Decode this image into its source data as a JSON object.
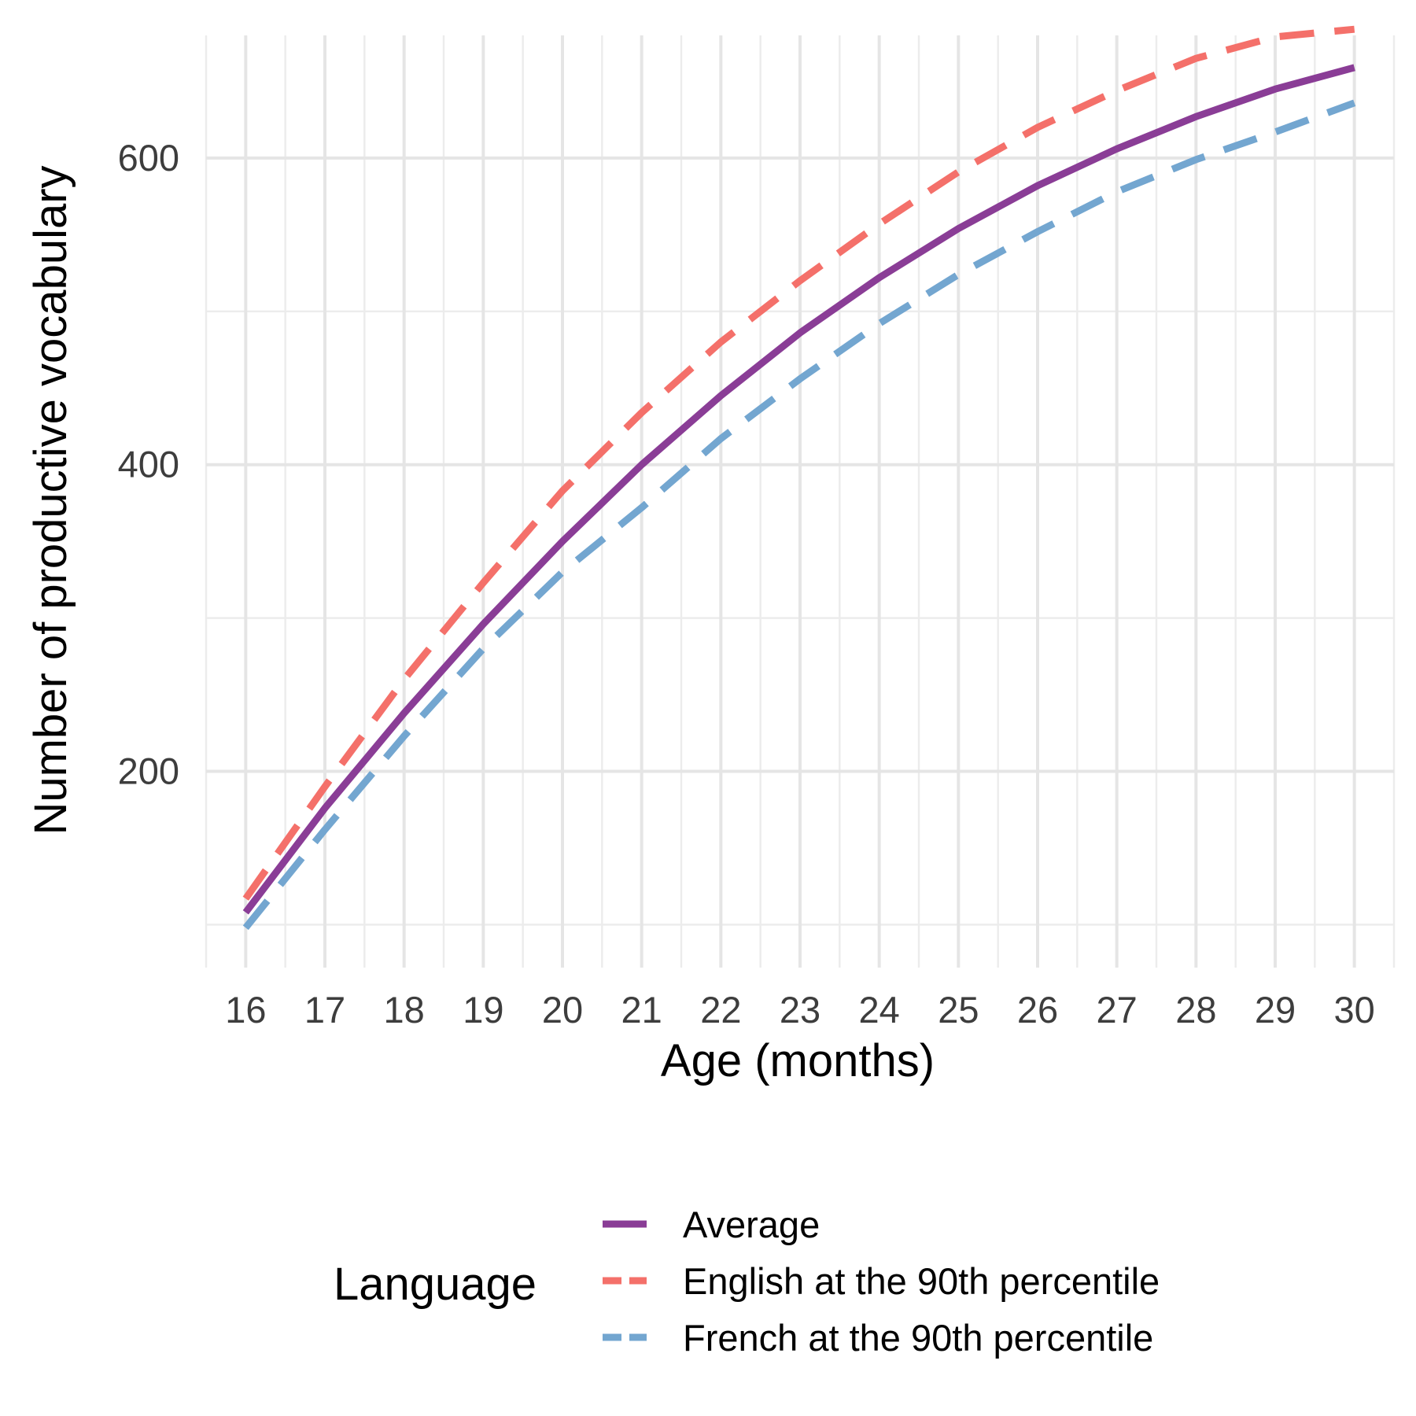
{
  "chart_data": {
    "type": "line",
    "title": "",
    "xlabel": "Age (months)",
    "ylabel": "Number of productive vocabulary",
    "x": [
      16,
      17,
      18,
      19,
      20,
      21,
      22,
      23,
      24,
      25,
      26,
      27,
      28,
      29,
      30
    ],
    "xlim": [
      15.5,
      30.5
    ],
    "ylim": [
      72,
      680
    ],
    "y_ticks": [
      200,
      400,
      600
    ],
    "y_minor_ticks": [
      100,
      300,
      500
    ],
    "grid": true,
    "legend": {
      "title": "Language",
      "position": "bottom"
    },
    "series": [
      {
        "name": "Average",
        "color": "#8a3d96",
        "dash": "solid",
        "values": [
          108,
          176,
          238,
          296,
          350,
          400,
          445,
          486,
          522,
          554,
          582,
          606,
          627,
          645,
          659
        ]
      },
      {
        "name": "English at the 90th percentile",
        "color": "#f4706a",
        "dash": "dashed",
        "values": [
          117,
          190,
          260,
          323,
          383,
          434,
          480,
          520,
          557,
          591,
          620,
          644,
          665,
          679,
          684
        ]
      },
      {
        "name": "French at the 90th percentile",
        "color": "#73a6d0",
        "dash": "dashed",
        "values": [
          98,
          162,
          223,
          280,
          330,
          372,
          417,
          456,
          492,
          524,
          552,
          578,
          599,
          617,
          636
        ]
      }
    ]
  }
}
